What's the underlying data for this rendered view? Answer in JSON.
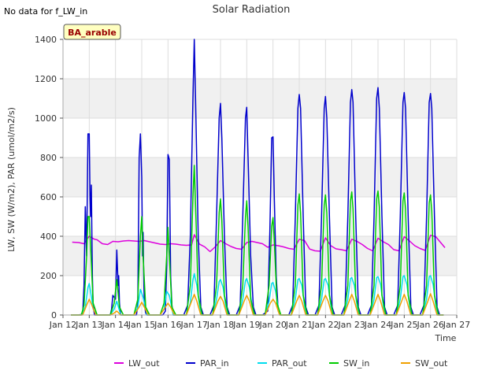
{
  "chart_data": {
    "type": "line",
    "title": "Solar Radiation",
    "note": "No data for f_LW_in",
    "badge": "BA_arable",
    "xlabel": "Time",
    "ylabel": "LW, SW (W/m2), PAR (umol/m2/s)",
    "xlim": [
      12,
      27
    ],
    "ylim": [
      0,
      1400
    ],
    "x_ticks": [
      {
        "v": 12,
        "label": "Jan 12"
      },
      {
        "v": 13,
        "label": "Jan 13"
      },
      {
        "v": 14,
        "label": "Jan 14"
      },
      {
        "v": 15,
        "label": "Jan 15"
      },
      {
        "v": 16,
        "label": "Jan 16"
      },
      {
        "v": 17,
        "label": "Jan 17"
      },
      {
        "v": 18,
        "label": "Jan 18"
      },
      {
        "v": 19,
        "label": "Jan 19"
      },
      {
        "v": 20,
        "label": "Jan 20"
      },
      {
        "v": 21,
        "label": "Jan 21"
      },
      {
        "v": 22,
        "label": "Jan 22"
      },
      {
        "v": 23,
        "label": "Jan 23"
      },
      {
        "v": 24,
        "label": "Jan 24"
      },
      {
        "v": 25,
        "label": "Jan 25"
      },
      {
        "v": 26,
        "label": "Jan 26"
      },
      {
        "v": 27,
        "label": "Jan 27"
      }
    ],
    "y_ticks": [
      0,
      200,
      400,
      600,
      800,
      1000,
      1200,
      1400
    ],
    "grid": true,
    "legend_position": "bottom",
    "series": [
      {
        "name": "LW_out",
        "color": "#dd00dd",
        "x": [
          12.35,
          12.6,
          12.8,
          13.0,
          13.2,
          13.3,
          13.5,
          13.7,
          13.9,
          14.1,
          14.3,
          14.5,
          14.7,
          14.9,
          15.1,
          15.3,
          15.5,
          15.7,
          15.9,
          16.1,
          16.3,
          16.5,
          16.7,
          16.9,
          17.0,
          17.2,
          17.4,
          17.6,
          17.8,
          18.0,
          18.2,
          18.4,
          18.6,
          18.8,
          19.0,
          19.2,
          19.4,
          19.6,
          19.8,
          20.0,
          20.2,
          20.4,
          20.6,
          20.8,
          21.0,
          21.2,
          21.4,
          21.6,
          21.8,
          22.0,
          22.2,
          22.4,
          22.6,
          22.8,
          23.0,
          23.2,
          23.4,
          23.6,
          23.8,
          24.0,
          24.2,
          24.4,
          24.6,
          24.8,
          25.0,
          25.2,
          25.4,
          25.6,
          25.8,
          26.0,
          26.2,
          26.4,
          26.55
        ],
        "y": [
          370,
          368,
          362,
          400,
          385,
          382,
          362,
          358,
          374,
          372,
          376,
          378,
          376,
          374,
          378,
          372,
          366,
          360,
          358,
          362,
          360,
          356,
          354,
          356,
          408,
          360,
          346,
          322,
          346,
          378,
          362,
          348,
          338,
          334,
          368,
          374,
          368,
          362,
          344,
          356,
          352,
          346,
          338,
          334,
          385,
          378,
          335,
          326,
          324,
          392,
          352,
          336,
          332,
          326,
          385,
          374,
          358,
          338,
          326,
          390,
          372,
          358,
          332,
          326,
          398,
          376,
          352,
          338,
          328,
          405,
          398,
          366,
          342
        ]
      },
      {
        "name": "PAR_in",
        "color": "#0000cc",
        "x": [
          12.3,
          12.6,
          12.75,
          12.8,
          12.85,
          12.9,
          12.95,
          13.0,
          13.03,
          13.05,
          13.08,
          13.1,
          13.12,
          13.15,
          13.2,
          13.3,
          13.5,
          13.8,
          13.85,
          13.9,
          14.0,
          14.05,
          14.1,
          14.12,
          14.15,
          14.2,
          14.3,
          14.6,
          14.8,
          14.85,
          14.9,
          14.95,
          15.0,
          15.03,
          15.05,
          15.08,
          15.1,
          15.15,
          15.2,
          15.5,
          15.8,
          15.9,
          15.95,
          16.0,
          16.05,
          16.1,
          16.15,
          16.2,
          16.3,
          16.6,
          16.75,
          16.85,
          16.95,
          17.0,
          17.05,
          17.15,
          17.25,
          17.35,
          17.6,
          17.75,
          17.85,
          17.95,
          18.0,
          18.05,
          18.15,
          18.25,
          18.35,
          18.6,
          18.75,
          18.85,
          18.95,
          19.0,
          19.05,
          19.15,
          19.25,
          19.35,
          19.6,
          19.8,
          19.88,
          19.95,
          20.0,
          20.05,
          20.12,
          20.2,
          20.3,
          20.6,
          20.75,
          20.85,
          20.95,
          21.0,
          21.05,
          21.15,
          21.25,
          21.35,
          21.6,
          21.75,
          21.85,
          21.95,
          22.0,
          22.05,
          22.15,
          22.25,
          22.35,
          22.6,
          22.75,
          22.85,
          22.95,
          23.0,
          23.05,
          23.15,
          23.25,
          23.35,
          23.6,
          23.75,
          23.85,
          23.95,
          24.0,
          24.05,
          24.15,
          24.25,
          24.35,
          24.6,
          24.75,
          24.85,
          24.95,
          25.0,
          25.05,
          25.15,
          25.25,
          25.35,
          25.6,
          25.75,
          25.85,
          25.95,
          26.0,
          26.05,
          26.15,
          26.25,
          26.35,
          26.5
        ],
        "y": [
          0,
          0,
          5,
          150,
          550,
          300,
          920,
          920,
          600,
          500,
          660,
          400,
          200,
          50,
          0,
          0,
          0,
          0,
          30,
          100,
          80,
          330,
          150,
          200,
          60,
          0,
          0,
          0,
          0,
          60,
          800,
          920,
          700,
          300,
          420,
          150,
          60,
          10,
          0,
          0,
          0,
          20,
          250,
          815,
          790,
          200,
          50,
          0,
          0,
          0,
          50,
          400,
          1100,
          1400,
          1100,
          400,
          40,
          0,
          0,
          50,
          500,
          1000,
          1075,
          900,
          400,
          40,
          0,
          0,
          50,
          500,
          1000,
          1055,
          800,
          300,
          40,
          0,
          0,
          20,
          430,
          900,
          905,
          600,
          200,
          20,
          0,
          0,
          50,
          500,
          1050,
          1120,
          1050,
          500,
          40,
          0,
          0,
          50,
          500,
          1050,
          1110,
          1000,
          500,
          40,
          0,
          0,
          50,
          500,
          1080,
          1145,
          1080,
          500,
          40,
          0,
          0,
          50,
          500,
          1100,
          1155,
          1050,
          500,
          40,
          0,
          0,
          50,
          500,
          1080,
          1130,
          1050,
          500,
          40,
          0,
          0,
          50,
          500,
          1080,
          1125,
          1050,
          500,
          40,
          0,
          0
        ]
      },
      {
        "name": "PAR_out",
        "color": "#00ddee",
        "x": [
          12.3,
          12.7,
          12.85,
          12.95,
          13.0,
          13.05,
          13.15,
          13.3,
          13.8,
          13.95,
          14.05,
          14.2,
          14.7,
          14.85,
          14.95,
          15.05,
          15.2,
          15.7,
          15.85,
          15.95,
          16.05,
          16.2,
          16.7,
          16.85,
          16.95,
          17.0,
          17.1,
          17.25,
          17.7,
          17.85,
          17.95,
          18.0,
          18.1,
          18.25,
          18.7,
          18.85,
          18.95,
          19.0,
          19.1,
          19.25,
          19.7,
          19.85,
          19.95,
          20.0,
          20.1,
          20.25,
          20.7,
          20.85,
          20.95,
          21.0,
          21.1,
          21.25,
          21.7,
          21.85,
          21.95,
          22.0,
          22.1,
          22.25,
          22.7,
          22.85,
          22.95,
          23.0,
          23.1,
          23.25,
          23.7,
          23.85,
          23.95,
          24.0,
          24.1,
          24.25,
          24.7,
          24.85,
          24.95,
          25.0,
          25.1,
          25.25,
          25.7,
          25.85,
          25.95,
          26.0,
          26.1,
          26.25,
          26.5
        ],
        "y": [
          0,
          0,
          40,
          140,
          160,
          120,
          30,
          0,
          0,
          30,
          70,
          0,
          0,
          40,
          130,
          90,
          0,
          0,
          30,
          120,
          100,
          0,
          0,
          60,
          180,
          210,
          150,
          0,
          0,
          80,
          170,
          180,
          140,
          0,
          0,
          80,
          175,
          185,
          140,
          0,
          0,
          70,
          160,
          165,
          120,
          0,
          0,
          80,
          180,
          185,
          150,
          0,
          0,
          80,
          180,
          185,
          150,
          0,
          0,
          80,
          185,
          190,
          150,
          0,
          0,
          80,
          190,
          195,
          155,
          0,
          0,
          80,
          195,
          200,
          155,
          0,
          0,
          80,
          195,
          200,
          155,
          0,
          0
        ]
      },
      {
        "name": "SW_in",
        "color": "#00cc00",
        "x": [
          12.3,
          12.7,
          12.8,
          12.9,
          12.95,
          13.0,
          13.05,
          13.15,
          13.3,
          13.8,
          13.95,
          14.05,
          14.15,
          14.3,
          14.7,
          14.85,
          14.95,
          15.0,
          15.05,
          15.15,
          15.3,
          15.7,
          15.85,
          15.95,
          16.0,
          16.05,
          16.15,
          16.3,
          16.7,
          16.85,
          16.95,
          17.0,
          17.05,
          17.15,
          17.3,
          17.7,
          17.85,
          17.95,
          18.0,
          18.05,
          18.15,
          18.3,
          18.7,
          18.85,
          18.95,
          19.0,
          19.05,
          19.15,
          19.3,
          19.7,
          19.85,
          19.95,
          20.0,
          20.05,
          20.15,
          20.3,
          20.7,
          20.85,
          20.95,
          21.0,
          21.05,
          21.15,
          21.3,
          21.7,
          21.85,
          21.95,
          22.0,
          22.05,
          22.15,
          22.3,
          22.7,
          22.85,
          22.95,
          23.0,
          23.05,
          23.15,
          23.3,
          23.7,
          23.85,
          23.95,
          24.0,
          24.05,
          24.15,
          24.3,
          24.7,
          24.85,
          24.95,
          25.0,
          25.05,
          25.15,
          25.3,
          25.7,
          25.85,
          25.95,
          26.0,
          26.05,
          26.15,
          26.3,
          26.5
        ],
        "y": [
          0,
          0,
          50,
          300,
          500,
          500,
          350,
          60,
          0,
          0,
          60,
          180,
          40,
          0,
          0,
          80,
          400,
          500,
          300,
          40,
          0,
          0,
          60,
          300,
          445,
          300,
          40,
          0,
          0,
          150,
          600,
          760,
          560,
          100,
          0,
          0,
          150,
          520,
          590,
          480,
          100,
          0,
          0,
          150,
          500,
          580,
          450,
          80,
          0,
          0,
          150,
          450,
          495,
          380,
          60,
          0,
          0,
          150,
          560,
          615,
          520,
          100,
          0,
          0,
          150,
          560,
          610,
          520,
          100,
          0,
          0,
          150,
          580,
          625,
          540,
          100,
          0,
          0,
          150,
          590,
          630,
          550,
          100,
          0,
          0,
          150,
          580,
          620,
          540,
          100,
          0,
          0,
          150,
          570,
          610,
          530,
          100,
          0,
          0
        ]
      },
      {
        "name": "SW_out",
        "color": "#f0a000",
        "x": [
          12.3,
          12.75,
          12.9,
          13.0,
          13.1,
          13.25,
          13.8,
          13.95,
          14.05,
          14.2,
          14.7,
          14.9,
          15.0,
          15.1,
          15.25,
          15.7,
          15.9,
          16.0,
          16.1,
          16.25,
          16.7,
          16.9,
          17.0,
          17.1,
          17.25,
          17.7,
          17.9,
          18.0,
          18.1,
          18.25,
          18.7,
          18.9,
          19.0,
          19.1,
          19.25,
          19.7,
          19.9,
          20.0,
          20.1,
          20.25,
          20.7,
          20.9,
          21.0,
          21.1,
          21.25,
          21.7,
          21.9,
          22.0,
          22.1,
          22.25,
          22.7,
          22.9,
          23.0,
          23.1,
          23.25,
          23.7,
          23.9,
          24.0,
          24.1,
          24.25,
          24.7,
          24.9,
          25.0,
          25.1,
          25.25,
          25.7,
          25.9,
          26.0,
          26.1,
          26.25,
          26.5
        ],
        "y": [
          0,
          0,
          50,
          80,
          50,
          0,
          0,
          10,
          20,
          0,
          0,
          40,
          65,
          40,
          0,
          0,
          40,
          60,
          40,
          0,
          0,
          70,
          105,
          70,
          0,
          0,
          70,
          95,
          70,
          0,
          0,
          70,
          100,
          70,
          0,
          0,
          60,
          80,
          60,
          0,
          0,
          70,
          100,
          70,
          0,
          0,
          70,
          100,
          70,
          0,
          0,
          70,
          105,
          70,
          0,
          0,
          70,
          105,
          70,
          0,
          0,
          70,
          105,
          70,
          0,
          0,
          70,
          108,
          70,
          0,
          0
        ]
      }
    ]
  }
}
